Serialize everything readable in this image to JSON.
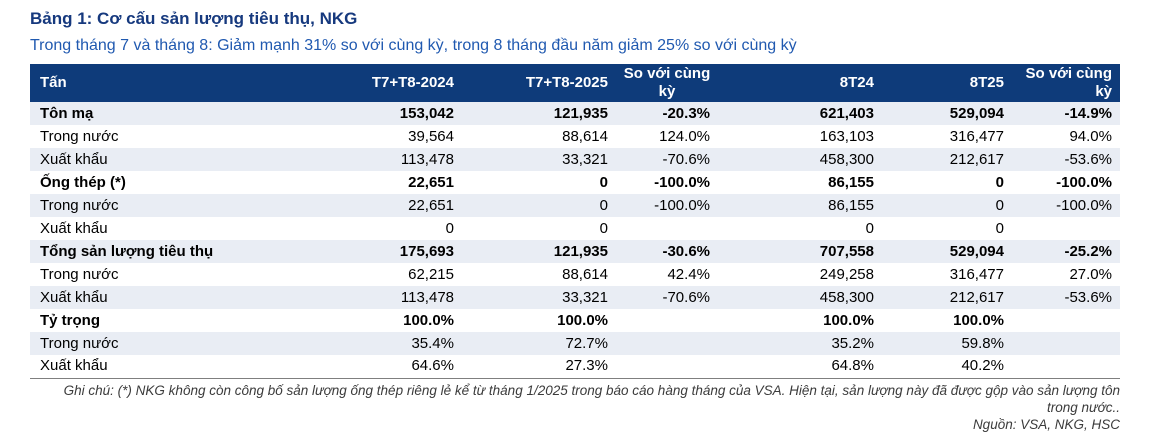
{
  "header": {
    "title": "Bảng 1: Cơ cấu sản lượng tiêu thụ, NKG",
    "subtitle": "Trong tháng 7 và tháng 8: Giảm mạnh 31% so với cùng kỳ, trong 8 tháng đầu năm giảm 25% so với cùng kỳ"
  },
  "chart_data": {
    "type": "table",
    "title": "Bảng 1: Cơ cấu sản lượng tiêu thụ, NKG",
    "unit": "Tấn",
    "columns": [
      "Tấn",
      "T7+T8-2024",
      "T7+T8-2025",
      "So với cùng kỳ",
      "8T24",
      "8T25",
      "So với cùng kỳ"
    ],
    "rows": [
      {
        "label": "Tôn mạ",
        "bold": true,
        "values": [
          "153,042",
          "121,935",
          "-20.3%",
          "621,403",
          "529,094",
          "-14.9%"
        ]
      },
      {
        "label": "Trong nước",
        "bold": false,
        "values": [
          "39,564",
          "88,614",
          "124.0%",
          "163,103",
          "316,477",
          "94.0%"
        ]
      },
      {
        "label": "Xuất khẩu",
        "bold": false,
        "values": [
          "113,478",
          "33,321",
          "-70.6%",
          "458,300",
          "212,617",
          "-53.6%"
        ]
      },
      {
        "label": "Ống thép (*)",
        "bold": true,
        "values": [
          "22,651",
          "0",
          "-100.0%",
          "86,155",
          "0",
          "-100.0%"
        ]
      },
      {
        "label": "Trong nước",
        "bold": false,
        "values": [
          "22,651",
          "0",
          "-100.0%",
          "86,155",
          "0",
          "-100.0%"
        ]
      },
      {
        "label": "Xuất khẩu",
        "bold": false,
        "values": [
          "0",
          "0",
          "",
          "0",
          "0",
          ""
        ]
      },
      {
        "label": "Tổng sản lượng tiêu thụ",
        "bold": true,
        "values": [
          "175,693",
          "121,935",
          "-30.6%",
          "707,558",
          "529,094",
          "-25.2%"
        ]
      },
      {
        "label": "Trong nước",
        "bold": false,
        "values": [
          "62,215",
          "88,614",
          "42.4%",
          "249,258",
          "316,477",
          "27.0%"
        ]
      },
      {
        "label": "Xuất khẩu",
        "bold": false,
        "values": [
          "113,478",
          "33,321",
          "-70.6%",
          "458,300",
          "212,617",
          "-53.6%"
        ]
      },
      {
        "label": "Tỷ trọng",
        "bold": true,
        "values": [
          "100.0%",
          "100.0%",
          "",
          "100.0%",
          "100.0%",
          ""
        ]
      },
      {
        "label": "Trong nước",
        "bold": false,
        "values": [
          "35.4%",
          "72.7%",
          "",
          "35.2%",
          "59.8%",
          ""
        ]
      },
      {
        "label": "Xuất khẩu",
        "bold": false,
        "values": [
          "64.6%",
          "27.3%",
          "",
          "64.8%",
          "40.2%",
          ""
        ]
      }
    ]
  },
  "footer": {
    "note": "Ghi chú: (*) NKG không còn công bố sản lượng ống thép riêng lẻ kể từ tháng 1/2025 trong báo cáo hàng tháng của VSA. Hiện tại, sản lượng này đã được gộp vào sản lượng tôn trong nước..",
    "source": "Nguồn: VSA, NKG, HSC"
  },
  "colors": {
    "header_bg": "#0E3B7A",
    "row_alt_bg": "#E9EDF4",
    "title_color": "#16397E",
    "subtitle_color": "#2059B0",
    "note_color": "#3b3b3b",
    "table_bottom_border": "#7f7f7f"
  }
}
